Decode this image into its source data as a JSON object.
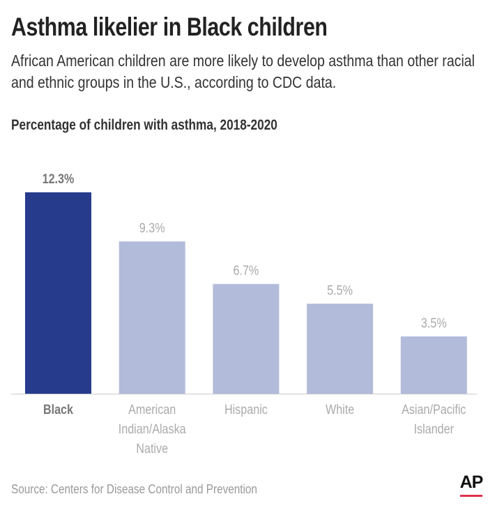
{
  "title": "Asthma likelier in Black children",
  "subtitle_lines": [
    "African American children are more likely to develop asthma than other racial",
    "and ethnic groups in the U.S., according to CDC data."
  ],
  "source": "Source: Centers for Disease Control and Prevention",
  "logo": "AP",
  "colors": {
    "highlight": "#263b8c",
    "other": "#b2bbd9",
    "highlight_label": "#777777",
    "other_label": "#aaaaaa",
    "logo_bar": "#e0314c"
  },
  "chart_data": {
    "type": "bar",
    "title": "Percentage of children with asthma, 2018-2020",
    "categories": [
      [
        "Black"
      ],
      [
        "American",
        "Indian/Alaska",
        "Native"
      ],
      [
        "Hispanic"
      ],
      [
        "White"
      ],
      [
        "Asian/Pacific",
        "Islander"
      ]
    ],
    "values": [
      12.3,
      9.3,
      6.7,
      5.5,
      3.5
    ],
    "data_labels": [
      "12.3%",
      "9.3%",
      "6.7%",
      "5.5%",
      "3.5%"
    ],
    "highlight_index": 0,
    "ylim": [
      0,
      12.3
    ],
    "grid": false,
    "xlabel": "",
    "ylabel": ""
  }
}
